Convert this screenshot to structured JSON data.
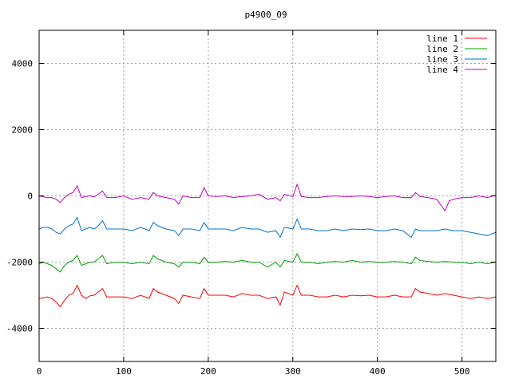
{
  "chart_data": {
    "type": "line",
    "title": "p4900_09",
    "xlabel": "",
    "ylabel": "",
    "xlim": [
      0,
      540
    ],
    "ylim": [
      -5000,
      5000
    ],
    "xticks": [
      0,
      100,
      200,
      300,
      400,
      500
    ],
    "yticks": [
      -4000,
      -2000,
      0,
      2000,
      4000
    ],
    "xtick_labels": [
      "0",
      "100",
      "200",
      "300",
      "400",
      "500"
    ],
    "ytick_labels": [
      "-4000",
      "-2000",
      "0",
      "2000",
      "4000"
    ],
    "grid": true,
    "legend_position": "top-right",
    "series": [
      {
        "name": "line 1",
        "color": "#ff0000",
        "x": [
          0,
          5,
          10,
          15,
          20,
          25,
          30,
          35,
          40,
          45,
          50,
          55,
          60,
          65,
          70,
          75,
          80,
          90,
          100,
          110,
          120,
          130,
          135,
          140,
          150,
          160,
          165,
          170,
          180,
          190,
          195,
          200,
          210,
          220,
          230,
          240,
          250,
          260,
          270,
          280,
          285,
          290,
          300,
          305,
          310,
          320,
          330,
          340,
          350,
          360,
          370,
          380,
          390,
          400,
          410,
          420,
          430,
          440,
          445,
          450,
          460,
          470,
          480,
          490,
          500,
          510,
          520,
          530,
          540
        ],
        "y": [
          -3100,
          -3080,
          -3050,
          -3100,
          -3200,
          -3350,
          -3150,
          -3000,
          -2950,
          -2700,
          -3000,
          -3100,
          -3020,
          -3000,
          -2900,
          -2800,
          -3050,
          -3050,
          -3050,
          -3100,
          -3000,
          -3100,
          -2800,
          -2900,
          -3000,
          -3100,
          -3250,
          -3000,
          -3050,
          -3100,
          -2800,
          -3000,
          -3000,
          -3000,
          -3050,
          -2950,
          -3000,
          -3000,
          -3100,
          -3050,
          -3300,
          -2900,
          -3000,
          -2700,
          -3000,
          -3000,
          -3050,
          -3050,
          -3000,
          -3050,
          -3000,
          -3020,
          -3000,
          -3050,
          -3050,
          -3000,
          -3050,
          -3050,
          -2800,
          -2900,
          -2950,
          -3000,
          -2950,
          -3000,
          -3050,
          -3100,
          -3050,
          -3100,
          -3050
        ]
      },
      {
        "name": "line 2",
        "color": "#00a000",
        "x": [
          0,
          5,
          10,
          15,
          20,
          25,
          30,
          35,
          40,
          45,
          50,
          55,
          60,
          65,
          70,
          75,
          80,
          90,
          100,
          110,
          120,
          130,
          135,
          140,
          150,
          160,
          165,
          170,
          180,
          190,
          195,
          200,
          210,
          220,
          230,
          240,
          250,
          260,
          270,
          280,
          285,
          290,
          300,
          305,
          310,
          320,
          330,
          340,
          350,
          360,
          370,
          380,
          390,
          400,
          410,
          420,
          430,
          440,
          445,
          450,
          460,
          470,
          480,
          490,
          500,
          510,
          520,
          530,
          540
        ],
        "y": [
          -2050,
          -2000,
          -2050,
          -2100,
          -2200,
          -2300,
          -2100,
          -2000,
          -1950,
          -1800,
          -2100,
          -2050,
          -2000,
          -2000,
          -1900,
          -1800,
          -2050,
          -2000,
          -2000,
          -2050,
          -2000,
          -2050,
          -1800,
          -1900,
          -2000,
          -2050,
          -2150,
          -2000,
          -2000,
          -2050,
          -1850,
          -2000,
          -2000,
          -1980,
          -2000,
          -1950,
          -2000,
          -2000,
          -2150,
          -2000,
          -2150,
          -1950,
          -2000,
          -1750,
          -2000,
          -2000,
          -2050,
          -2000,
          -1980,
          -2000,
          -1950,
          -2000,
          -1980,
          -2000,
          -2000,
          -1980,
          -2000,
          -2050,
          -1850,
          -1950,
          -1980,
          -2000,
          -1980,
          -2000,
          -2000,
          -2050,
          -2000,
          -2050,
          -2000
        ]
      },
      {
        "name": "line 3",
        "color": "#0070d0",
        "x": [
          0,
          5,
          10,
          15,
          20,
          25,
          30,
          35,
          40,
          45,
          50,
          55,
          60,
          65,
          70,
          75,
          80,
          90,
          100,
          110,
          120,
          130,
          135,
          140,
          150,
          160,
          165,
          170,
          180,
          190,
          195,
          200,
          210,
          220,
          230,
          240,
          250,
          260,
          270,
          280,
          285,
          290,
          300,
          305,
          310,
          320,
          330,
          340,
          350,
          360,
          370,
          380,
          390,
          400,
          410,
          420,
          430,
          440,
          445,
          450,
          460,
          470,
          480,
          490,
          500,
          510,
          520,
          530,
          540
        ],
        "y": [
          -1000,
          -950,
          -950,
          -1000,
          -1100,
          -1150,
          -1000,
          -900,
          -850,
          -650,
          -1050,
          -1000,
          -950,
          -1000,
          -900,
          -750,
          -1000,
          -1000,
          -1000,
          -1050,
          -950,
          -1050,
          -800,
          -900,
          -1000,
          -1050,
          -1200,
          -1000,
          -1000,
          -1050,
          -800,
          -1000,
          -1000,
          -1000,
          -1050,
          -950,
          -1000,
          -1000,
          -1100,
          -1050,
          -1250,
          -950,
          -1000,
          -700,
          -1000,
          -1000,
          -1050,
          -1050,
          -1000,
          -1050,
          -1000,
          -1020,
          -1000,
          -1050,
          -1050,
          -1000,
          -1050,
          -1250,
          -1000,
          -1050,
          -1050,
          -1050,
          -1000,
          -1050,
          -1050,
          -1100,
          -1150,
          -1200,
          -1100
        ]
      },
      {
        "name": "line 4",
        "color": "#c000c0",
        "x": [
          0,
          5,
          10,
          15,
          20,
          25,
          30,
          35,
          40,
          45,
          50,
          55,
          60,
          65,
          70,
          75,
          80,
          90,
          100,
          110,
          120,
          130,
          135,
          140,
          150,
          160,
          165,
          170,
          180,
          190,
          195,
          200,
          210,
          220,
          230,
          240,
          250,
          260,
          270,
          280,
          285,
          290,
          300,
          305,
          310,
          320,
          330,
          340,
          350,
          360,
          370,
          380,
          390,
          400,
          410,
          420,
          430,
          440,
          445,
          450,
          460,
          470,
          480,
          485,
          490,
          500,
          510,
          520,
          530,
          540
        ],
        "y": [
          0,
          -30,
          -50,
          -50,
          -100,
          -200,
          -50,
          50,
          100,
          300,
          -50,
          -20,
          0,
          -30,
          50,
          150,
          -50,
          -50,
          0,
          -100,
          -50,
          -100,
          100,
          0,
          -50,
          -100,
          -250,
          0,
          -50,
          -50,
          250,
          0,
          -20,
          0,
          -50,
          -20,
          0,
          50,
          -100,
          -50,
          -150,
          50,
          -20,
          350,
          -20,
          -50,
          -50,
          -20,
          0,
          -20,
          -20,
          0,
          -20,
          -50,
          -20,
          0,
          -50,
          -50,
          100,
          -20,
          -50,
          -100,
          -450,
          -150,
          -100,
          -50,
          -50,
          0,
          -50,
          20
        ]
      }
    ]
  }
}
